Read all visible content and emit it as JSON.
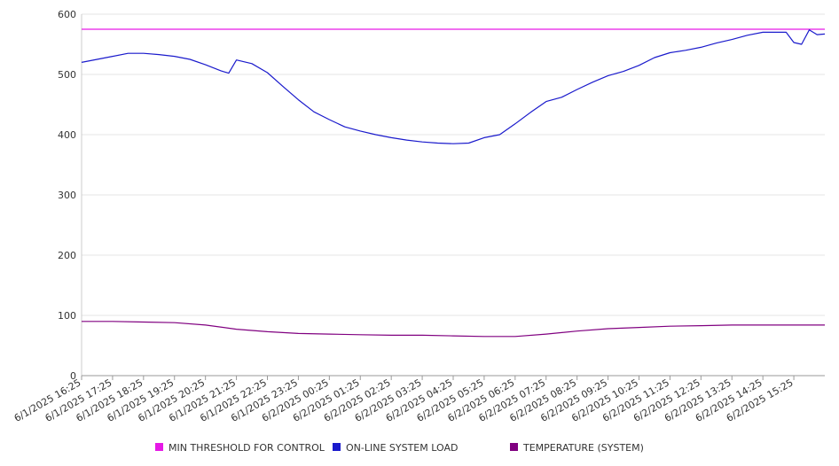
{
  "chart_data": {
    "type": "line",
    "title": "",
    "xlabel": "",
    "ylabel": "",
    "ylim": [
      0,
      600
    ],
    "yticks": [
      "0",
      "100",
      "200",
      "300",
      "400",
      "500",
      "600"
    ],
    "xticks": [
      "6/1/2025 16:25",
      "6/1/2025 17:25",
      "6/1/2025 18:25",
      "6/1/2025 19:25",
      "6/1/2025 20:25",
      "6/1/2025 21:25",
      "6/1/2025 22:25",
      "6/1/2025 23:25",
      "6/2/2025 00:25",
      "6/2/2025 01:25",
      "6/2/2025 02:25",
      "6/2/2025 03:25",
      "6/2/2025 04:25",
      "6/2/2025 05:25",
      "6/2/2025 06:25",
      "6/2/2025 07:25",
      "6/2/2025 08:25",
      "6/2/2025 09:25",
      "6/2/2025 10:25",
      "6/2/2025 11:25",
      "6/2/2025 12:25",
      "6/2/2025 13:25",
      "6/2/2025 14:25",
      "6/2/2025 15:25"
    ],
    "x_range": [
      "6/1/2025 16:25",
      "6/2/2025 16:25"
    ],
    "grid": "horizontal",
    "legend_position": "bottom",
    "series": [
      {
        "name": "MIN THRESHOLD FOR CONTROL",
        "color": "#e619e6",
        "points": [
          [
            "6/1/2025 16:25",
            575
          ],
          [
            "6/2/2025 16:25",
            575
          ]
        ]
      },
      {
        "name": "ON-LINE SYSTEM LOAD",
        "color": "#1a1acc",
        "points": [
          [
            "6/1/2025 16:25",
            520
          ],
          [
            "6/1/2025 16:55",
            525
          ],
          [
            "6/1/2025 17:25",
            530
          ],
          [
            "6/1/2025 17:55",
            535
          ],
          [
            "6/1/2025 18:25",
            535
          ],
          [
            "6/1/2025 18:55",
            533
          ],
          [
            "6/1/2025 19:25",
            530
          ],
          [
            "6/1/2025 19:55",
            525
          ],
          [
            "6/1/2025 20:25",
            516
          ],
          [
            "6/1/2025 20:55",
            506
          ],
          [
            "6/1/2025 21:10",
            502
          ],
          [
            "6/1/2025 21:25",
            524
          ],
          [
            "6/1/2025 21:55",
            518
          ],
          [
            "6/1/2025 22:25",
            503
          ],
          [
            "6/1/2025 22:55",
            480
          ],
          [
            "6/1/2025 23:25",
            458
          ],
          [
            "6/1/2025 23:55",
            438
          ],
          [
            "6/2/2025 00:25",
            425
          ],
          [
            "6/2/2025 00:55",
            413
          ],
          [
            "6/2/2025 01:25",
            406
          ],
          [
            "6/2/2025 01:55",
            400
          ],
          [
            "6/2/2025 02:25",
            395
          ],
          [
            "6/2/2025 02:55",
            391
          ],
          [
            "6/2/2025 03:25",
            388
          ],
          [
            "6/2/2025 03:55",
            386
          ],
          [
            "6/2/2025 04:25",
            385
          ],
          [
            "6/2/2025 04:55",
            386
          ],
          [
            "6/2/2025 05:25",
            395
          ],
          [
            "6/2/2025 05:55",
            400
          ],
          [
            "6/2/2025 06:25",
            418
          ],
          [
            "6/2/2025 06:55",
            437
          ],
          [
            "6/2/2025 07:25",
            455
          ],
          [
            "6/2/2025 07:55",
            462
          ],
          [
            "6/2/2025 08:25",
            475
          ],
          [
            "6/2/2025 08:55",
            487
          ],
          [
            "6/2/2025 09:25",
            498
          ],
          [
            "6/2/2025 09:55",
            505
          ],
          [
            "6/2/2025 10:25",
            515
          ],
          [
            "6/2/2025 10:55",
            528
          ],
          [
            "6/2/2025 11:25",
            536
          ],
          [
            "6/2/2025 11:55",
            540
          ],
          [
            "6/2/2025 12:25",
            545
          ],
          [
            "6/2/2025 12:55",
            552
          ],
          [
            "6/2/2025 13:25",
            558
          ],
          [
            "6/2/2025 13:55",
            565
          ],
          [
            "6/2/2025 14:25",
            570
          ],
          [
            "6/2/2025 14:55",
            570
          ],
          [
            "6/2/2025 15:10",
            570
          ],
          [
            "6/2/2025 15:25",
            553
          ],
          [
            "6/2/2025 15:40",
            550
          ],
          [
            "6/2/2025 15:55",
            574
          ],
          [
            "6/2/2025 16:10",
            566
          ],
          [
            "6/2/2025 16:25",
            567
          ]
        ]
      },
      {
        "name": "TEMPERATURE (SYSTEM)",
        "color": "#800080",
        "points": [
          [
            "6/1/2025 16:25",
            90
          ],
          [
            "6/1/2025 17:25",
            90
          ],
          [
            "6/1/2025 18:25",
            89
          ],
          [
            "6/1/2025 19:25",
            88
          ],
          [
            "6/1/2025 20:25",
            84
          ],
          [
            "6/1/2025 21:25",
            77
          ],
          [
            "6/1/2025 22:25",
            73
          ],
          [
            "6/1/2025 23:25",
            70
          ],
          [
            "6/2/2025 00:25",
            69
          ],
          [
            "6/2/2025 01:25",
            68
          ],
          [
            "6/2/2025 02:25",
            67
          ],
          [
            "6/2/2025 03:25",
            67
          ],
          [
            "6/2/2025 04:25",
            66
          ],
          [
            "6/2/2025 05:25",
            65
          ],
          [
            "6/2/2025 06:25",
            65
          ],
          [
            "6/2/2025 07:25",
            69
          ],
          [
            "6/2/2025 08:25",
            74
          ],
          [
            "6/2/2025 09:25",
            78
          ],
          [
            "6/2/2025 10:25",
            80
          ],
          [
            "6/2/2025 11:25",
            82
          ],
          [
            "6/2/2025 12:25",
            83
          ],
          [
            "6/2/2025 13:25",
            84
          ],
          [
            "6/2/2025 14:25",
            84
          ],
          [
            "6/2/2025 15:25",
            84
          ],
          [
            "6/2/2025 16:25",
            84
          ]
        ]
      }
    ]
  }
}
